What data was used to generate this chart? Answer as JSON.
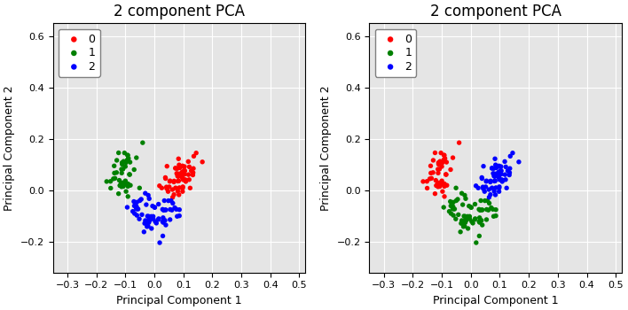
{
  "title": "2 component PCA",
  "xlabel": "Principal Component 1",
  "ylabel": "Principal Component 2",
  "xlim": [
    -0.35,
    0.52
  ],
  "ylim": [
    -0.32,
    0.65
  ],
  "xticks": [
    -0.3,
    -0.2,
    -0.1,
    0.0,
    0.1,
    0.2,
    0.3,
    0.4,
    0.5
  ],
  "yticks": [
    -0.2,
    0.0,
    0.2,
    0.4,
    0.6
  ],
  "colors_left": [
    "red",
    "green",
    "blue"
  ],
  "colors_right": [
    "red",
    "green",
    "blue"
  ],
  "legend_labels": [
    "0",
    "1",
    "2"
  ],
  "marker_size": 15,
  "n_clusters": 3,
  "random_state": 42
}
